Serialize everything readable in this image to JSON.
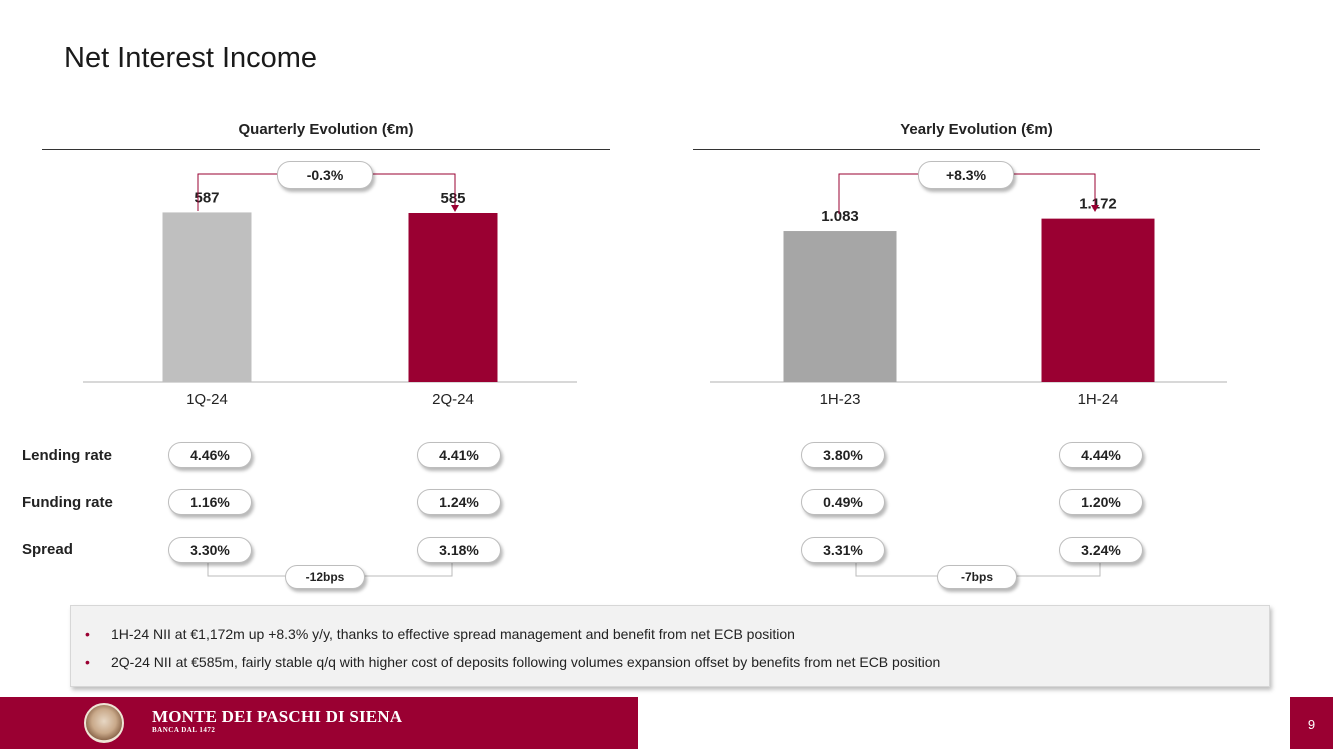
{
  "page": {
    "title": "Net Interest Income",
    "page_number": "9"
  },
  "chart_data": [
    {
      "type": "bar",
      "title": "Quarterly Evolution (€m)",
      "categories": [
        "1Q-24",
        "2Q-24"
      ],
      "values": [
        587,
        585
      ],
      "value_labels": [
        "587",
        "585"
      ],
      "ylim": [
        0,
        900
      ],
      "colors": [
        "#bfbfbf",
        "#9a0032"
      ],
      "change_label": "-0.3%"
    },
    {
      "type": "bar",
      "title": "Yearly Evolution (€m)",
      "categories": [
        "1H-23",
        "1H-24"
      ],
      "values": [
        1083,
        1172
      ],
      "value_labels": [
        "1.083",
        "1.172"
      ],
      "ylim": [
        0,
        1650
      ],
      "colors": [
        "#a6a6a6",
        "#9a0032"
      ],
      "change_label": "+8.3%"
    }
  ],
  "rates": {
    "row_labels": [
      "Lending rate",
      "Funding rate",
      "Spread"
    ],
    "quarterly": {
      "lending": [
        "4.46%",
        "4.41%"
      ],
      "funding": [
        "1.16%",
        "1.24%"
      ],
      "spread": [
        "3.30%",
        "3.18%"
      ],
      "spread_change": "-12bps"
    },
    "yearly": {
      "lending": [
        "3.80%",
        "4.44%"
      ],
      "funding": [
        "0.49%",
        "1.20%"
      ],
      "spread": [
        "3.31%",
        "3.24%"
      ],
      "spread_change": "-7bps"
    }
  },
  "bullets": [
    "1H-24 NII at €1,172m up +8.3% y/y, thanks to effective spread management and benefit from net ECB position",
    "2Q-24 NII at €585m, fairly stable q/q with higher cost of deposits following volumes expansion offset by benefits from net ECB position"
  ],
  "footer": {
    "brand_name": "MONTE DEI PASCHI DI SIENA",
    "brand_since": "BANCA DAL 1472",
    "logo": "bank-seal-logo"
  },
  "colors": {
    "accent": "#9a0032",
    "bar_grey_light": "#bfbfbf",
    "bar_grey_dark": "#a6a6a6"
  }
}
